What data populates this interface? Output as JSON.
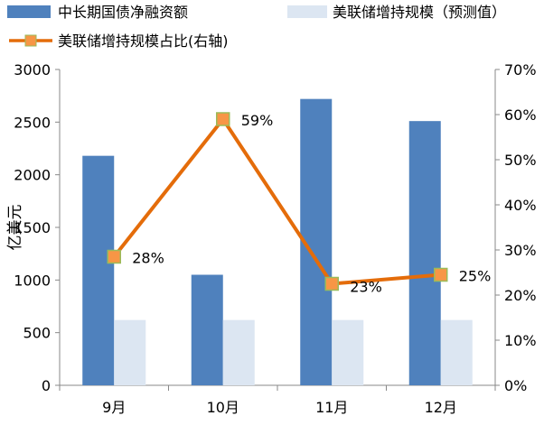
{
  "chart_data": {
    "type": "bar",
    "categories": [
      "9月",
      "10月",
      "11月",
      "12月"
    ],
    "ylabel": "亿美元",
    "ylim": [
      0,
      3000
    ],
    "yticks": [
      "0",
      "500",
      "1000",
      "1500",
      "2000",
      "2500",
      "3000"
    ],
    "y2lim": [
      0,
      0.7
    ],
    "y2ticks": [
      "0%",
      "10%",
      "20%",
      "30%",
      "40%",
      "50%",
      "60%",
      "70%"
    ],
    "legend_position": "top",
    "grid": false,
    "series": [
      {
        "name": "中长期国债净融资额",
        "type": "bar",
        "axis": "left",
        "color": "#4F81BD",
        "values": [
          2180,
          1050,
          2720,
          2510
        ]
      },
      {
        "name": "美联储增持规模（预测值）",
        "type": "bar",
        "axis": "left",
        "color": "#DCE6F2",
        "values": [
          620,
          620,
          620,
          620
        ]
      },
      {
        "name": "美联储增持规模占比(右轴)",
        "type": "line",
        "axis": "right",
        "color": "#E46C0A",
        "marker_color": "#F79646",
        "marker_border": "#9BBB59",
        "values": [
          0.285,
          0.59,
          0.225,
          0.245
        ],
        "labels": [
          "28%",
          "59%",
          "23%",
          "25%"
        ]
      }
    ]
  }
}
